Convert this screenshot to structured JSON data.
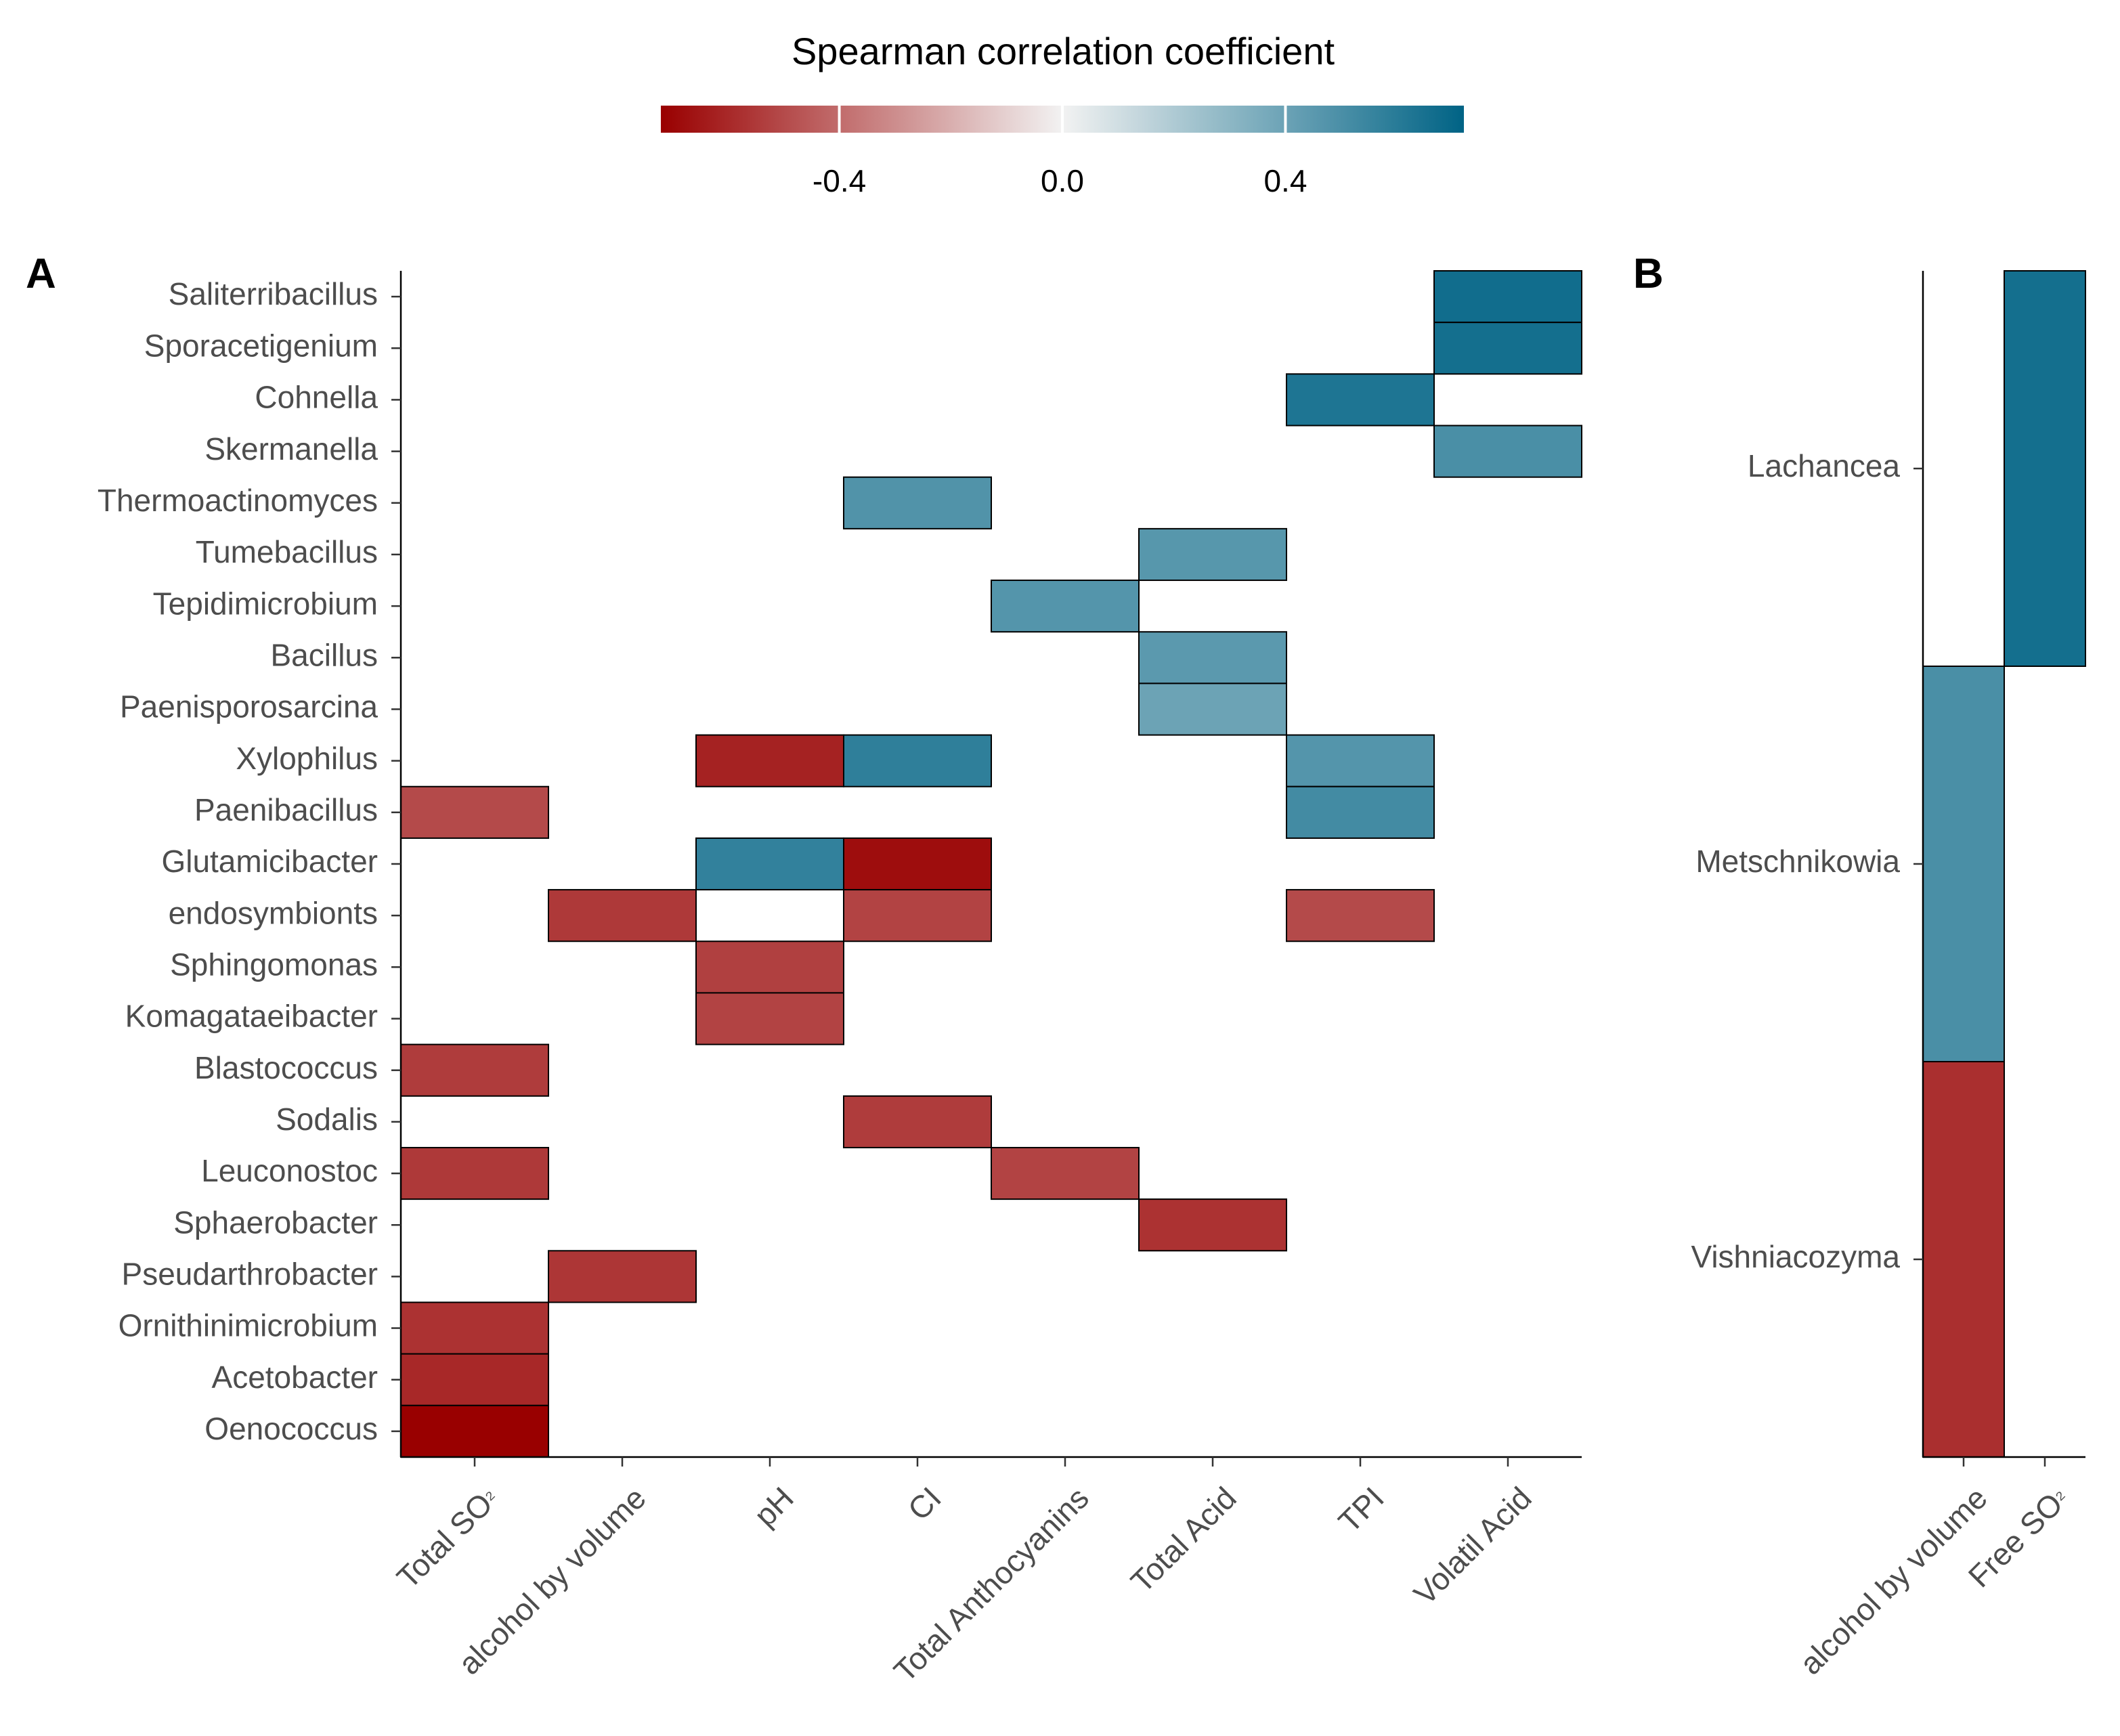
{
  "chart_data": [
    {
      "type": "heatmap",
      "panel": "A",
      "title": "",
      "xlabel": "",
      "ylabel": "",
      "x_categories": [
        "Total SO₂",
        "alcohol by volume",
        "pH",
        "CI",
        "Total Anthocyanins",
        "Total Acid",
        "TPI",
        "Volatil Acid"
      ],
      "y_categories": [
        "Saliterribacillus",
        "Sporacetigenium",
        "Cohnella",
        "Skermanella",
        "Thermoactinomyces",
        "Tumebacillus",
        "Tepidimicrobium",
        "Bacillus",
        "Paenisporosarcina",
        "Xylophilus",
        "Paenibacillus",
        "Glutamicibacter",
        "endosymbionts",
        "Sphingomonas",
        "Komagataeibacter",
        "Blastococcus",
        "Sodalis",
        "Leuconostoc",
        "Sphaerobacter",
        "Pseudarthrobacter",
        "Ornithinimicrobium",
        "Acetobacter",
        "Oenococcus"
      ],
      "cells": [
        {
          "y": "Saliterribacillus",
          "x": "Volatil Acid",
          "value": 0.67
        },
        {
          "y": "Sporacetigenium",
          "x": "Volatil Acid",
          "value": 0.66
        },
        {
          "y": "Cohnella",
          "x": "TPI",
          "value": 0.63
        },
        {
          "y": "Skermanella",
          "x": "Volatil Acid",
          "value": 0.5
        },
        {
          "y": "Thermoactinomyces",
          "x": "CI",
          "value": 0.48
        },
        {
          "y": "Tumebacillus",
          "x": "Total Acid",
          "value": 0.46
        },
        {
          "y": "Tepidimicrobium",
          "x": "Total Anthocyanins",
          "value": 0.47
        },
        {
          "y": "Bacillus",
          "x": "Total Acid",
          "value": 0.45
        },
        {
          "y": "Paenisporosarcina",
          "x": "Total Acid",
          "value": 0.4
        },
        {
          "y": "Xylophilus",
          "x": "pH",
          "value": -0.62
        },
        {
          "y": "Xylophilus",
          "x": "CI",
          "value": 0.58
        },
        {
          "y": "Xylophilus",
          "x": "TPI",
          "value": 0.47
        },
        {
          "y": "Paenibacillus",
          "x": "Total SO₂",
          "value": -0.5
        },
        {
          "y": "Paenibacillus",
          "x": "TPI",
          "value": 0.52
        },
        {
          "y": "Glutamicibacter",
          "x": "pH",
          "value": 0.57
        },
        {
          "y": "Glutamicibacter",
          "x": "CI",
          "value": -0.68
        },
        {
          "y": "endosymbionts",
          "x": "alcohol by volume",
          "value": -0.55
        },
        {
          "y": "endosymbionts",
          "x": "CI",
          "value": -0.52
        },
        {
          "y": "endosymbionts",
          "x": "TPI",
          "value": -0.5
        },
        {
          "y": "Sphingomonas",
          "x": "pH",
          "value": -0.53
        },
        {
          "y": "Komagataeibacter",
          "x": "pH",
          "value": -0.52
        },
        {
          "y": "Blastococcus",
          "x": "Total SO₂",
          "value": -0.54
        },
        {
          "y": "Sodalis",
          "x": "CI",
          "value": -0.54
        },
        {
          "y": "Leuconostoc",
          "x": "Total SO₂",
          "value": -0.55
        },
        {
          "y": "Leuconostoc",
          "x": "Total Anthocyanins",
          "value": -0.52
        },
        {
          "y": "Sphaerobacter",
          "x": "Total Acid",
          "value": -0.57
        },
        {
          "y": "Pseudarthrobacter",
          "x": "alcohol by volume",
          "value": -0.56
        },
        {
          "y": "Ornithinimicrobium",
          "x": "Total SO₂",
          "value": -0.57
        },
        {
          "y": "Acetobacter",
          "x": "Total SO₂",
          "value": -0.6
        },
        {
          "y": "Oenococcus",
          "x": "Total SO₂",
          "value": -0.72
        }
      ]
    },
    {
      "type": "heatmap",
      "panel": "B",
      "title": "",
      "xlabel": "",
      "ylabel": "",
      "x_categories": [
        "alcohol by volume",
        "Free SO₂"
      ],
      "y_categories": [
        "Lachancea",
        "Metschnikowia",
        "Vishniacozyma"
      ],
      "cells": [
        {
          "y": "Lachancea",
          "x": "Free SO₂",
          "value": 0.66
        },
        {
          "y": "Metschnikowia",
          "x": "alcohol by volume",
          "value": 0.5
        },
        {
          "y": "Vishniacozyma",
          "x": "alcohol by volume",
          "value": -0.58
        }
      ]
    }
  ],
  "legend": {
    "title": "Spearman correlation coefficient",
    "range": [
      -0.72,
      0.72
    ],
    "ticks": [
      -0.4,
      0.0,
      0.4
    ],
    "tick_labels": [
      "-0.4",
      "0.0",
      "0.4"
    ],
    "colors": {
      "low": "#990000",
      "mid": "#f2f2f2",
      "high": "#006385"
    }
  },
  "panel_tags": [
    "A",
    "B"
  ],
  "style": {
    "border": "#000000",
    "label_color": "#4d4d4d"
  }
}
